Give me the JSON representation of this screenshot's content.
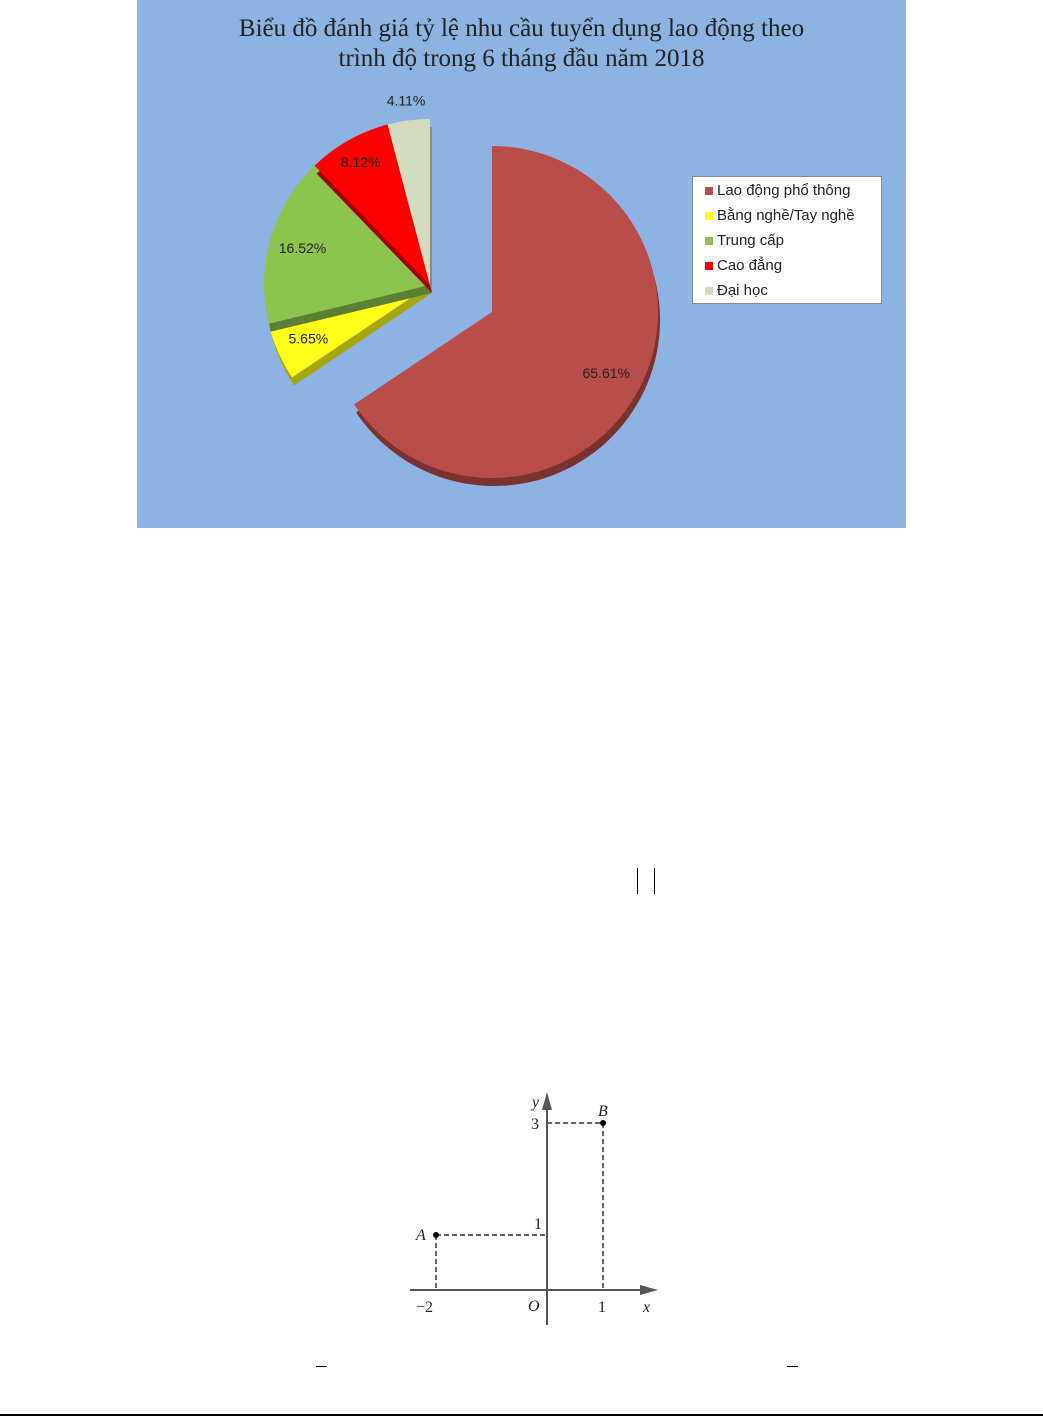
{
  "chart_data": {
    "type": "pie",
    "title_line1": "Biểu đồ đánh giá tỷ lệ nhu cầu tuyển dụng lao động theo",
    "title_line2": "trình độ trong 6 tháng đầu năm 2018",
    "categories": [
      "Lao động phổ thông",
      "Bằng nghề/Tay nghề",
      "Trung cấp",
      "Cao đẳng",
      "Đại học"
    ],
    "values": [
      65.61,
      5.65,
      16.52,
      8.12,
      4.11
    ],
    "labels": [
      "65.61%",
      "5.65%",
      "16.52%",
      "8.12%",
      "4.11%"
    ],
    "colors": [
      "#b84d4a",
      "#ffff1a",
      "#8dc34f",
      "#ff0000",
      "#d3dbbd"
    ],
    "legend_position": "right",
    "background": "#8db3e2"
  },
  "diagram": {
    "axis_x": "x",
    "axis_y": "y",
    "origin": "O",
    "points": [
      {
        "name": "A",
        "x": -2,
        "y": 1
      },
      {
        "name": "B",
        "x": 1,
        "y": 3
      }
    ],
    "x_ticks": [
      "−2",
      "1"
    ],
    "y_ticks": [
      "1",
      "3"
    ]
  }
}
